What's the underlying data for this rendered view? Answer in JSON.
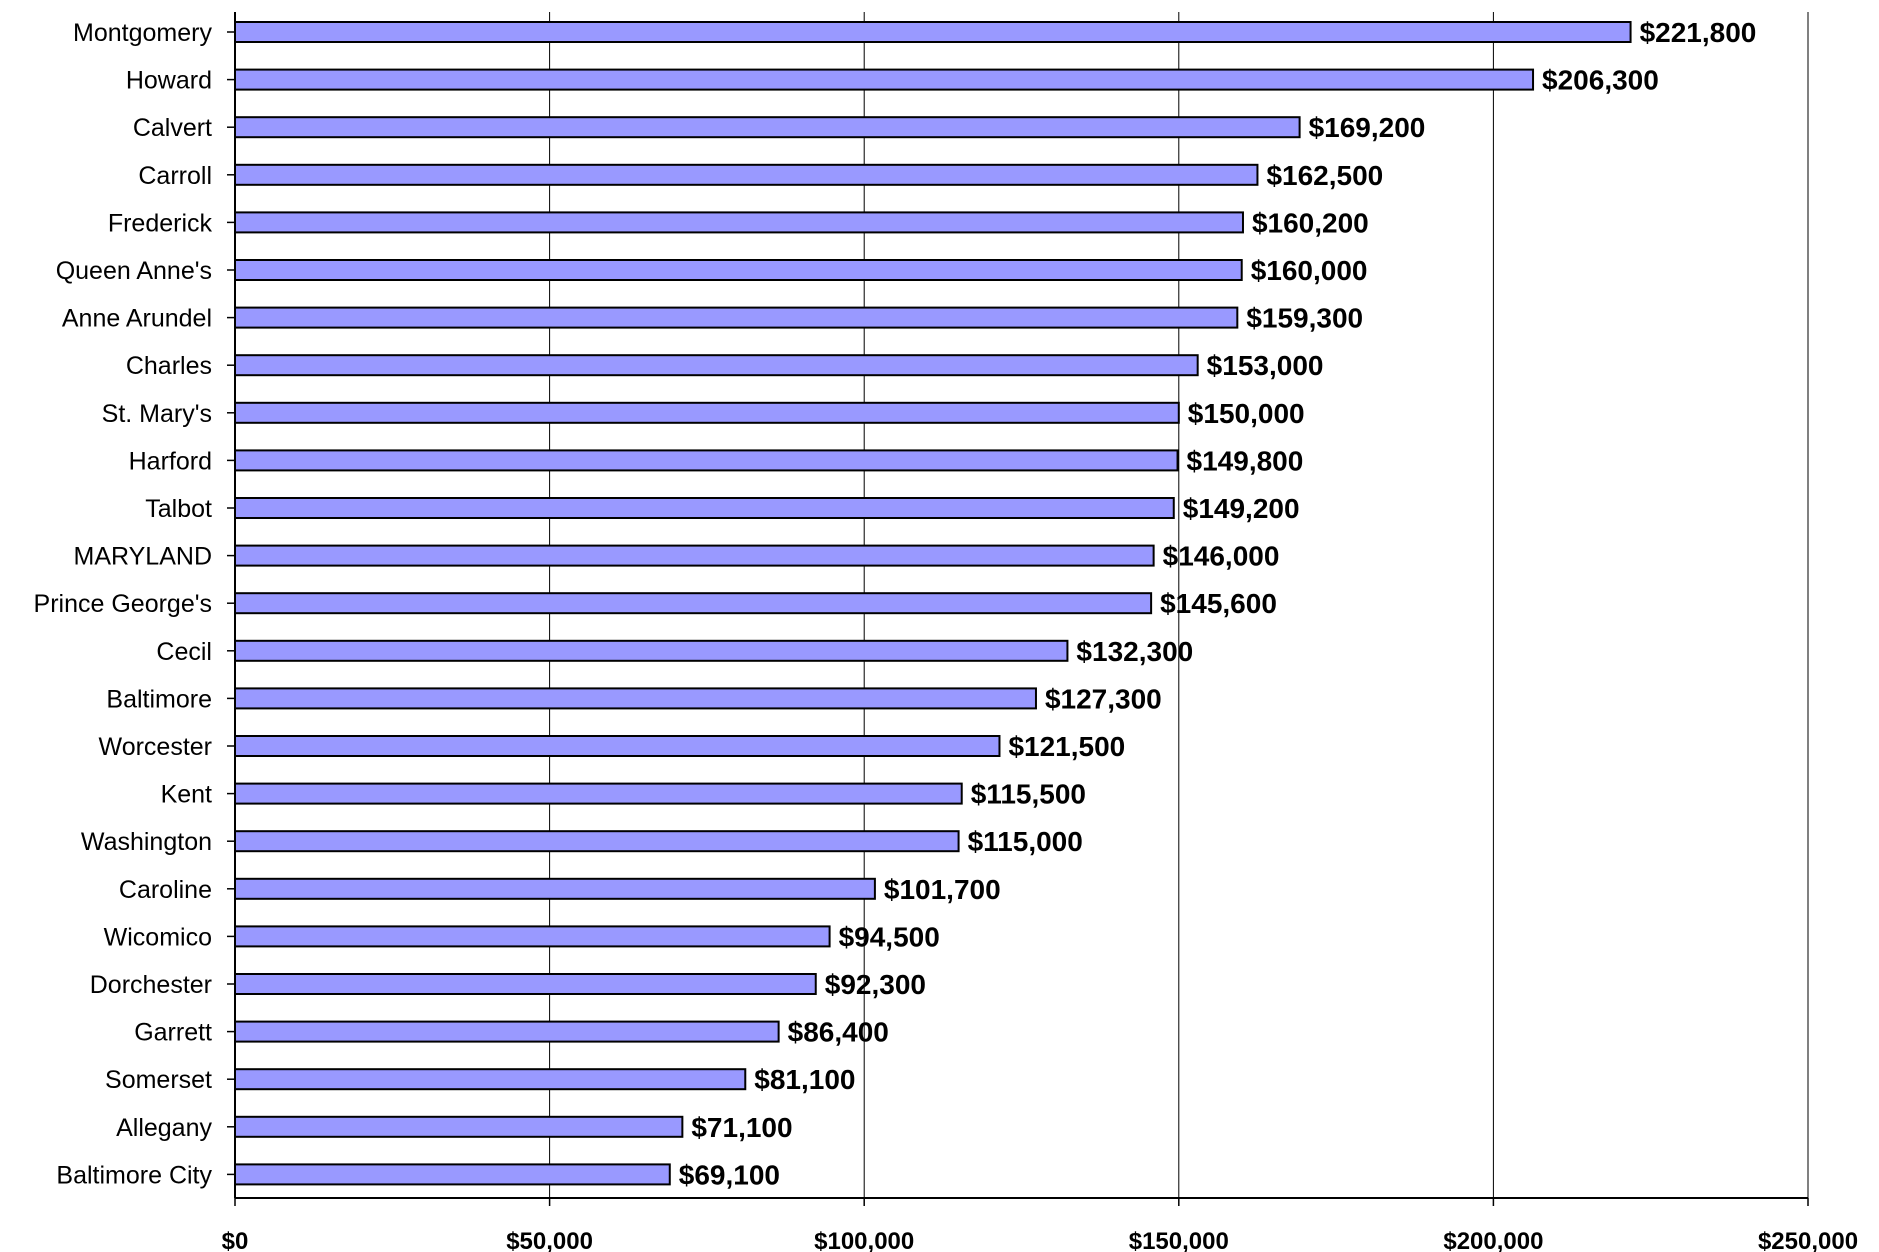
{
  "chart_data": {
    "type": "bar",
    "orientation": "horizontal",
    "title": "",
    "xlabel": "",
    "ylabel": "",
    "categories": [
      "Montgomery",
      "Howard",
      "Calvert",
      "Carroll",
      "Frederick",
      "Queen Anne's",
      "Anne Arundel",
      "Charles",
      "St. Mary's",
      "Harford",
      "Talbot",
      "MARYLAND",
      "Prince George's",
      "Cecil",
      "Baltimore",
      "Worcester",
      "Kent",
      "Washington",
      "Caroline",
      "Wicomico",
      "Dorchester",
      "Garrett",
      "Somerset",
      "Allegany",
      "Baltimore City"
    ],
    "values": [
      221800,
      206300,
      169200,
      162500,
      160200,
      160000,
      159300,
      153000,
      150000,
      149800,
      149200,
      146000,
      145600,
      132300,
      127300,
      121500,
      115500,
      115000,
      101700,
      94500,
      92300,
      86400,
      81100,
      71100,
      69100
    ],
    "value_labels": [
      "$221,800",
      "$206,300",
      "$169,200",
      "$162,500",
      "$160,200",
      "$160,000",
      "$159,300",
      "$153,000",
      "$150,000",
      "$149,800",
      "$149,200",
      "$146,000",
      "$145,600",
      "$132,300",
      "$127,300",
      "$121,500",
      "$115,500",
      "$115,000",
      "$101,700",
      "$94,500",
      "$92,300",
      "$86,400",
      "$81,100",
      "$71,100",
      "$69,100"
    ],
    "xlim": [
      0,
      250000
    ],
    "x_ticks": [
      0,
      50000,
      100000,
      150000,
      200000,
      250000
    ],
    "x_tick_labels": [
      "$0",
      "$50,000",
      "$100,000",
      "$150,000",
      "$200,000",
      "$250,000"
    ],
    "grid": true,
    "legend": "none",
    "bar_color": "#9999ff",
    "bar_edge_color": "#000000",
    "grid_color": "#000000"
  }
}
